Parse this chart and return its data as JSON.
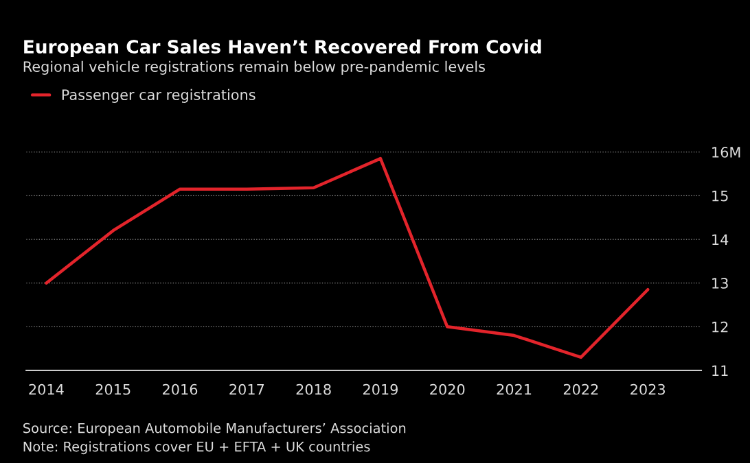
{
  "chart_data": {
    "type": "line",
    "title": "European Car Sales Haven’t Recovered From Covid",
    "subtitle": "Regional vehicle registrations remain below pre-pandemic levels",
    "categories": [
      "2014",
      "2015",
      "2016",
      "2017",
      "2018",
      "2019",
      "2020",
      "2021",
      "2022",
      "2023"
    ],
    "series": [
      {
        "name": "Passenger car registrations",
        "color": "#e3242b",
        "values": [
          13.0,
          14.2,
          15.15,
          15.15,
          15.18,
          15.85,
          12.0,
          11.8,
          11.3,
          12.85
        ]
      }
    ],
    "ylim": [
      11,
      16.3
    ],
    "yticks": [
      {
        "value": 11,
        "label": "11"
      },
      {
        "value": 12,
        "label": "12"
      },
      {
        "value": 13,
        "label": "13"
      },
      {
        "value": 14,
        "label": "14"
      },
      {
        "value": 15,
        "label": "15"
      },
      {
        "value": 16,
        "label": "16M"
      }
    ],
    "grid": "y",
    "legend": "top left",
    "marker": "none",
    "line_style": "solid",
    "annotations": [
      "Source: European Automobile Manufacturers’ Association",
      "Note: Registrations cover EU + EFTA + UK countries"
    ]
  }
}
